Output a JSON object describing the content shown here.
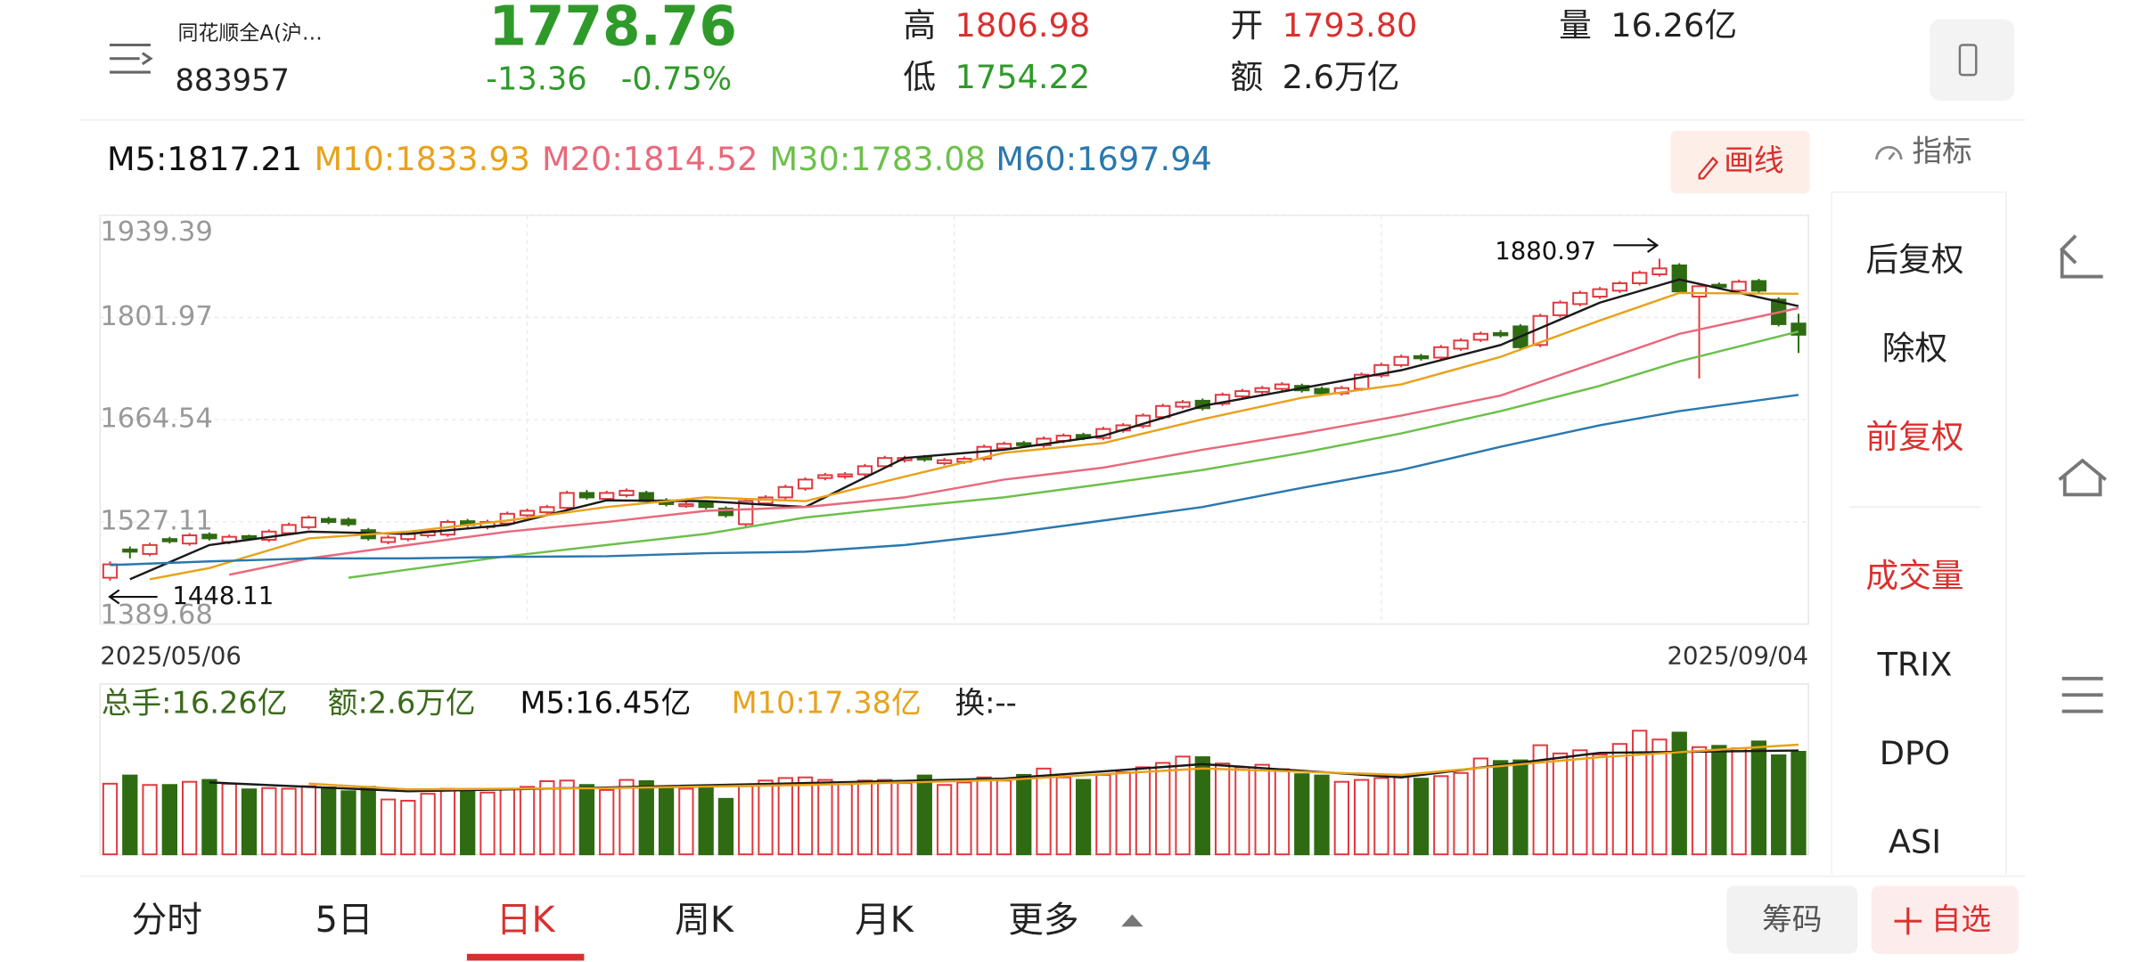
{
  "header": {
    "name": "同花顺全A(沪…",
    "code": "883957",
    "price": "1778.76",
    "change": "-13.36",
    "change_pct": "-0.75%",
    "stats": [
      {
        "label": "高",
        "value": "1806.98"
      },
      {
        "label": "低",
        "value": "1754.22"
      },
      {
        "label": "开",
        "value": "1793.80"
      },
      {
        "label": "额",
        "value": "2.6万亿"
      },
      {
        "label": "量",
        "value": "16.26亿"
      }
    ]
  },
  "tools": {
    "draw": "画线",
    "indicator": "指标"
  },
  "side_menu": [
    "后复权",
    "除权",
    "前复权",
    "成交量",
    "TRIX",
    "DPO",
    "ASI"
  ],
  "tabs": [
    "分时",
    "5日",
    "日K",
    "周K",
    "月K",
    "更多"
  ],
  "chips": [
    "筹码",
    "自选"
  ],
  "chart_data": {
    "type": "candlestick",
    "categories": [
      "2025/05/06",
      null,
      null,
      null,
      null,
      null,
      null,
      null,
      null,
      null,
      null,
      null,
      null,
      null,
      null,
      null,
      null,
      null,
      null,
      null,
      null,
      null,
      null,
      null,
      null,
      null,
      null,
      null,
      null,
      null,
      null,
      null,
      null,
      null,
      null,
      null,
      null,
      null,
      null,
      null,
      null,
      null,
      null,
      null,
      null,
      null,
      null,
      null,
      null,
      null,
      null,
      null,
      null,
      null,
      null,
      null,
      null,
      null,
      null,
      null,
      null,
      null,
      null,
      null,
      null,
      null,
      null,
      null,
      null,
      null,
      null,
      null,
      null,
      null,
      null,
      null,
      null,
      null,
      null,
      null,
      null,
      null,
      null,
      null,
      null,
      "2025/09/04"
    ],
    "open": [
      1452,
      1490,
      1484,
      1504,
      1498,
      1510,
      1500,
      1508,
      1503,
      1512,
      1520,
      1531,
      1530,
      1516,
      1500,
      1504,
      1509,
      1510,
      1528,
      1520,
      1525,
      1536,
      1540,
      1546,
      1566,
      1558,
      1563,
      1566,
      1556,
      1549,
      1553,
      1545,
      1524,
      1552,
      1560,
      1572,
      1586,
      1588,
      1591,
      1602,
      1610,
      1614,
      1606,
      1608,
      1612,
      1626,
      1633,
      1630,
      1636,
      1644,
      1640,
      1650,
      1656,
      1668,
      1682,
      1690,
      1686,
      1696,
      1702,
      1706,
      1710,
      1706,
      1700,
      1706,
      1724,
      1738,
      1750,
      1748,
      1760,
      1772,
      1781,
      1790,
      1765,
      1805,
      1820,
      1830,
      1838,
      1848,
      1860,
      1872,
      1830,
      1846,
      1838,
      1851,
      1826,
      1793.8
    ],
    "close": [
      1470,
      1487,
      1496,
      1501,
      1509,
      1505,
      1507,
      1505,
      1514,
      1523,
      1533,
      1527,
      1524,
      1505,
      1506,
      1511,
      1515,
      1527,
      1523,
      1527,
      1538,
      1542,
      1547,
      1566,
      1560,
      1566,
      1569,
      1555,
      1551,
      1551,
      1547,
      1536,
      1555,
      1560,
      1574,
      1584,
      1590,
      1591,
      1602,
      1613,
      1613,
      1611,
      1610,
      1612,
      1628,
      1632,
      1631,
      1639,
      1643,
      1640,
      1652,
      1657,
      1670,
      1683,
      1688,
      1680,
      1698,
      1703,
      1707,
      1712,
      1704,
      1700,
      1707,
      1725,
      1738,
      1749,
      1747,
      1762,
      1771,
      1780,
      1778,
      1762,
      1804,
      1822,
      1835,
      1840,
      1848,
      1862,
      1868,
      1837,
      1844,
      1843,
      1850,
      1838,
      1793,
      1778.76
    ],
    "high": [
      1474,
      1494,
      1499,
      1507,
      1512,
      1513,
      1510,
      1510,
      1517,
      1526,
      1536,
      1534,
      1533,
      1519,
      1509,
      1514,
      1518,
      1530,
      1531,
      1530,
      1541,
      1545,
      1550,
      1569,
      1570,
      1569,
      1572,
      1569,
      1559,
      1554,
      1556,
      1548,
      1558,
      1563,
      1577,
      1587,
      1593,
      1594,
      1605,
      1616,
      1616,
      1617,
      1613,
      1615,
      1631,
      1635,
      1636,
      1642,
      1646,
      1647,
      1655,
      1660,
      1673,
      1686,
      1691,
      1693,
      1701,
      1706,
      1710,
      1715,
      1713,
      1709,
      1710,
      1728,
      1741,
      1752,
      1753,
      1765,
      1774,
      1783,
      1785,
      1793,
      1807,
      1825,
      1838,
      1843,
      1851,
      1865,
      1880.97,
      1875,
      1847,
      1849,
      1853,
      1854,
      1829,
      1806.98
    ],
    "low": [
      1448.11,
      1478,
      1481,
      1498,
      1495,
      1502,
      1497,
      1502,
      1500,
      1509,
      1517,
      1524,
      1521,
      1502,
      1497,
      1501,
      1506,
      1507,
      1520,
      1517,
      1522,
      1533,
      1537,
      1543,
      1557,
      1555,
      1560,
      1552,
      1548,
      1546,
      1544,
      1533,
      1521,
      1549,
      1557,
      1569,
      1583,
      1585,
      1588,
      1599,
      1607,
      1608,
      1603,
      1605,
      1609,
      1623,
      1628,
      1627,
      1633,
      1637,
      1637,
      1647,
      1653,
      1665,
      1679,
      1677,
      1683,
      1693,
      1699,
      1703,
      1701,
      1697,
      1697,
      1703,
      1721,
      1735,
      1744,
      1745,
      1757,
      1769,
      1775,
      1759,
      1762,
      1802,
      1817,
      1827,
      1835,
      1845,
      1857,
      1834,
      1720,
      1840,
      1835,
      1835,
      1790,
      1754.22
    ],
    "colors": {
      "up": "#e0393e",
      "down": "#2f6b12"
    },
    "ylim": [
      1389.68,
      1939.39
    ],
    "yticks": [
      1939.39,
      1801.97,
      1664.54,
      1527.11,
      1389.68
    ],
    "grid": true,
    "series": [
      {
        "name": "M5:1817.21",
        "color": "#1a1a1a",
        "x": [
          1,
          5,
          10,
          15,
          20,
          25,
          30,
          35,
          40,
          45,
          50,
          55,
          60,
          65,
          70,
          75,
          79,
          85
        ],
        "values": [
          1450,
          1496,
          1514,
          1511,
          1523,
          1556,
          1555,
          1547,
          1613,
          1624,
          1643,
          1683,
          1707,
          1731,
          1765,
          1822,
          1853,
          1817.21
        ]
      },
      {
        "name": "M10:1833.93",
        "color": "#e8a21b",
        "x": [
          2,
          5,
          10,
          15,
          20,
          25,
          30,
          35,
          40,
          45,
          50,
          55,
          60,
          65,
          70,
          75,
          79,
          85
        ],
        "values": [
          1450,
          1465,
          1505,
          1514,
          1529,
          1547,
          1560,
          1555,
          1588,
          1620,
          1633,
          1665,
          1694,
          1712,
          1749,
          1798,
          1835,
          1833.93
        ]
      },
      {
        "name": "M20:1814.52",
        "color": "#e8697b",
        "x": [
          6,
          10,
          15,
          20,
          25,
          30,
          35,
          40,
          45,
          50,
          55,
          60,
          65,
          70,
          75,
          79,
          85
        ],
        "values": [
          1456,
          1478,
          1496,
          1514,
          1527,
          1542,
          1547,
          1560,
          1584,
          1600,
          1624,
          1646,
          1670,
          1697,
          1743,
          1780,
          1814.52
        ]
      },
      {
        "name": "M30:1783.08",
        "color": "#6cc04a",
        "x": [
          12,
          15,
          20,
          25,
          30,
          35,
          40,
          45,
          50,
          55,
          60,
          65,
          70,
          75,
          79,
          85
        ],
        "values": [
          1452,
          1463,
          1481,
          1496,
          1511,
          1533,
          1547,
          1560,
          1578,
          1597,
          1620,
          1646,
          1676,
          1710,
          1743,
          1783.08
        ]
      },
      {
        "name": "M60:1697.94",
        "color": "#2a78ae",
        "x": [
          0,
          5,
          10,
          15,
          20,
          25,
          30,
          35,
          40,
          45,
          50,
          55,
          60,
          65,
          70,
          75,
          79,
          85
        ],
        "values": [
          1469,
          1474,
          1478,
          1478,
          1480,
          1481,
          1485,
          1487,
          1496,
          1511,
          1529,
          1547,
          1573,
          1597,
          1628,
          1657,
          1676,
          1697.94
        ]
      }
    ],
    "volume": {
      "labels": [
        "总手:16.26亿",
        "额:2.6万亿",
        "换:--"
      ],
      "ylim": [
        0,
        27
      ],
      "values": [
        11.2,
        12.5,
        11.0,
        11.0,
        11.5,
        11.8,
        11.2,
        10.3,
        10.5,
        10.4,
        10.8,
        10.6,
        10.0,
        10.7,
        8.7,
        8.5,
        9.6,
        10.4,
        10.0,
        9.8,
        10.3,
        10.7,
        11.6,
        11.7,
        11.0,
        10.2,
        11.8,
        11.6,
        10.6,
        10.4,
        10.5,
        8.8,
        10.8,
        11.7,
        12.1,
        12.2,
        11.8,
        11.1,
        11.7,
        11.8,
        11.3,
        12.5,
        11.0,
        11.4,
        12.2,
        11.7,
        12.6,
        13.6,
        12.2,
        11.8,
        12.6,
        13.0,
        13.8,
        14.5,
        15.5,
        15.4,
        14.4,
        13.8,
        14.2,
        13.5,
        12.7,
        12.5,
        11.5,
        11.8,
        12.1,
        12.5,
        12.0,
        12.4,
        12.9,
        15.2,
        14.8,
        14.9,
        17.3,
        16.0,
        16.5,
        15.8,
        17.5,
        19.6,
        18.2,
        19.3,
        17.0,
        17.2,
        16.8,
        17.9,
        15.7,
        16.26
      ],
      "series": [
        {
          "name": "M5:16.45亿",
          "color": "#1a1a1a",
          "x": [
            5,
            15,
            25,
            35,
            45,
            55,
            65,
            75,
            85
          ],
          "values": [
            11.4,
            10.0,
            10.6,
            11.3,
            12.0,
            14.3,
            12.2,
            16.1,
            16.45
          ]
        },
        {
          "name": "M10:17.38亿",
          "color": "#e8a21b",
          "x": [
            10,
            15,
            25,
            35,
            45,
            55,
            65,
            75,
            85
          ],
          "values": [
            11.2,
            10.3,
            10.5,
            11.0,
            11.8,
            13.6,
            12.6,
            15.4,
            17.38
          ]
        }
      ]
    }
  }
}
